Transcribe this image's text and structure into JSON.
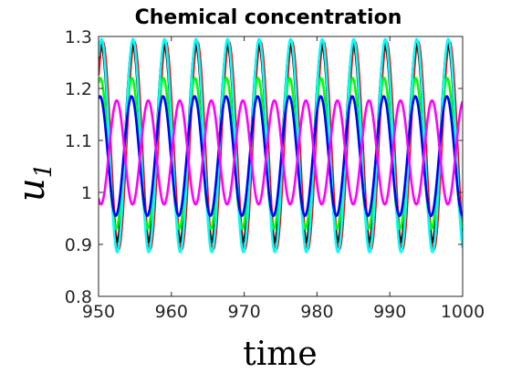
{
  "chart_data": {
    "type": "line",
    "title": "Chemical concentration",
    "xlabel": "time",
    "ylabel": "u",
    "ylabel_subscript": "1",
    "xlim": [
      950,
      1000
    ],
    "ylim": [
      0.8,
      1.3
    ],
    "xticks": [
      "950",
      "960",
      "970",
      "980",
      "990",
      "1000"
    ],
    "yticks": [
      "0.8",
      "0.9",
      "1",
      "1.1",
      "1.2",
      "1.3"
    ],
    "period": 4.33,
    "series": [
      {
        "color": "#ff0000",
        "mean": 1.09,
        "amplitude": 0.2,
        "peak_time": 954.9
      },
      {
        "color": "#000000",
        "mean": 1.095,
        "amplitude": 0.19,
        "peak_time": 954.7
      },
      {
        "color": "#00ff00",
        "mean": 1.075,
        "amplitude": 0.145,
        "peak_time": 950.25
      },
      {
        "color": "#00ffff",
        "mean": 1.09,
        "amplitude": 0.205,
        "peak_time": 950.4
      },
      {
        "color": "#0000ff",
        "mean": 1.07,
        "amplitude": 0.115,
        "peak_time": 950.2
      },
      {
        "color": "#ff00ff",
        "mean": 1.077,
        "amplitude": 0.1,
        "peak_time": 952.5
      }
    ]
  }
}
